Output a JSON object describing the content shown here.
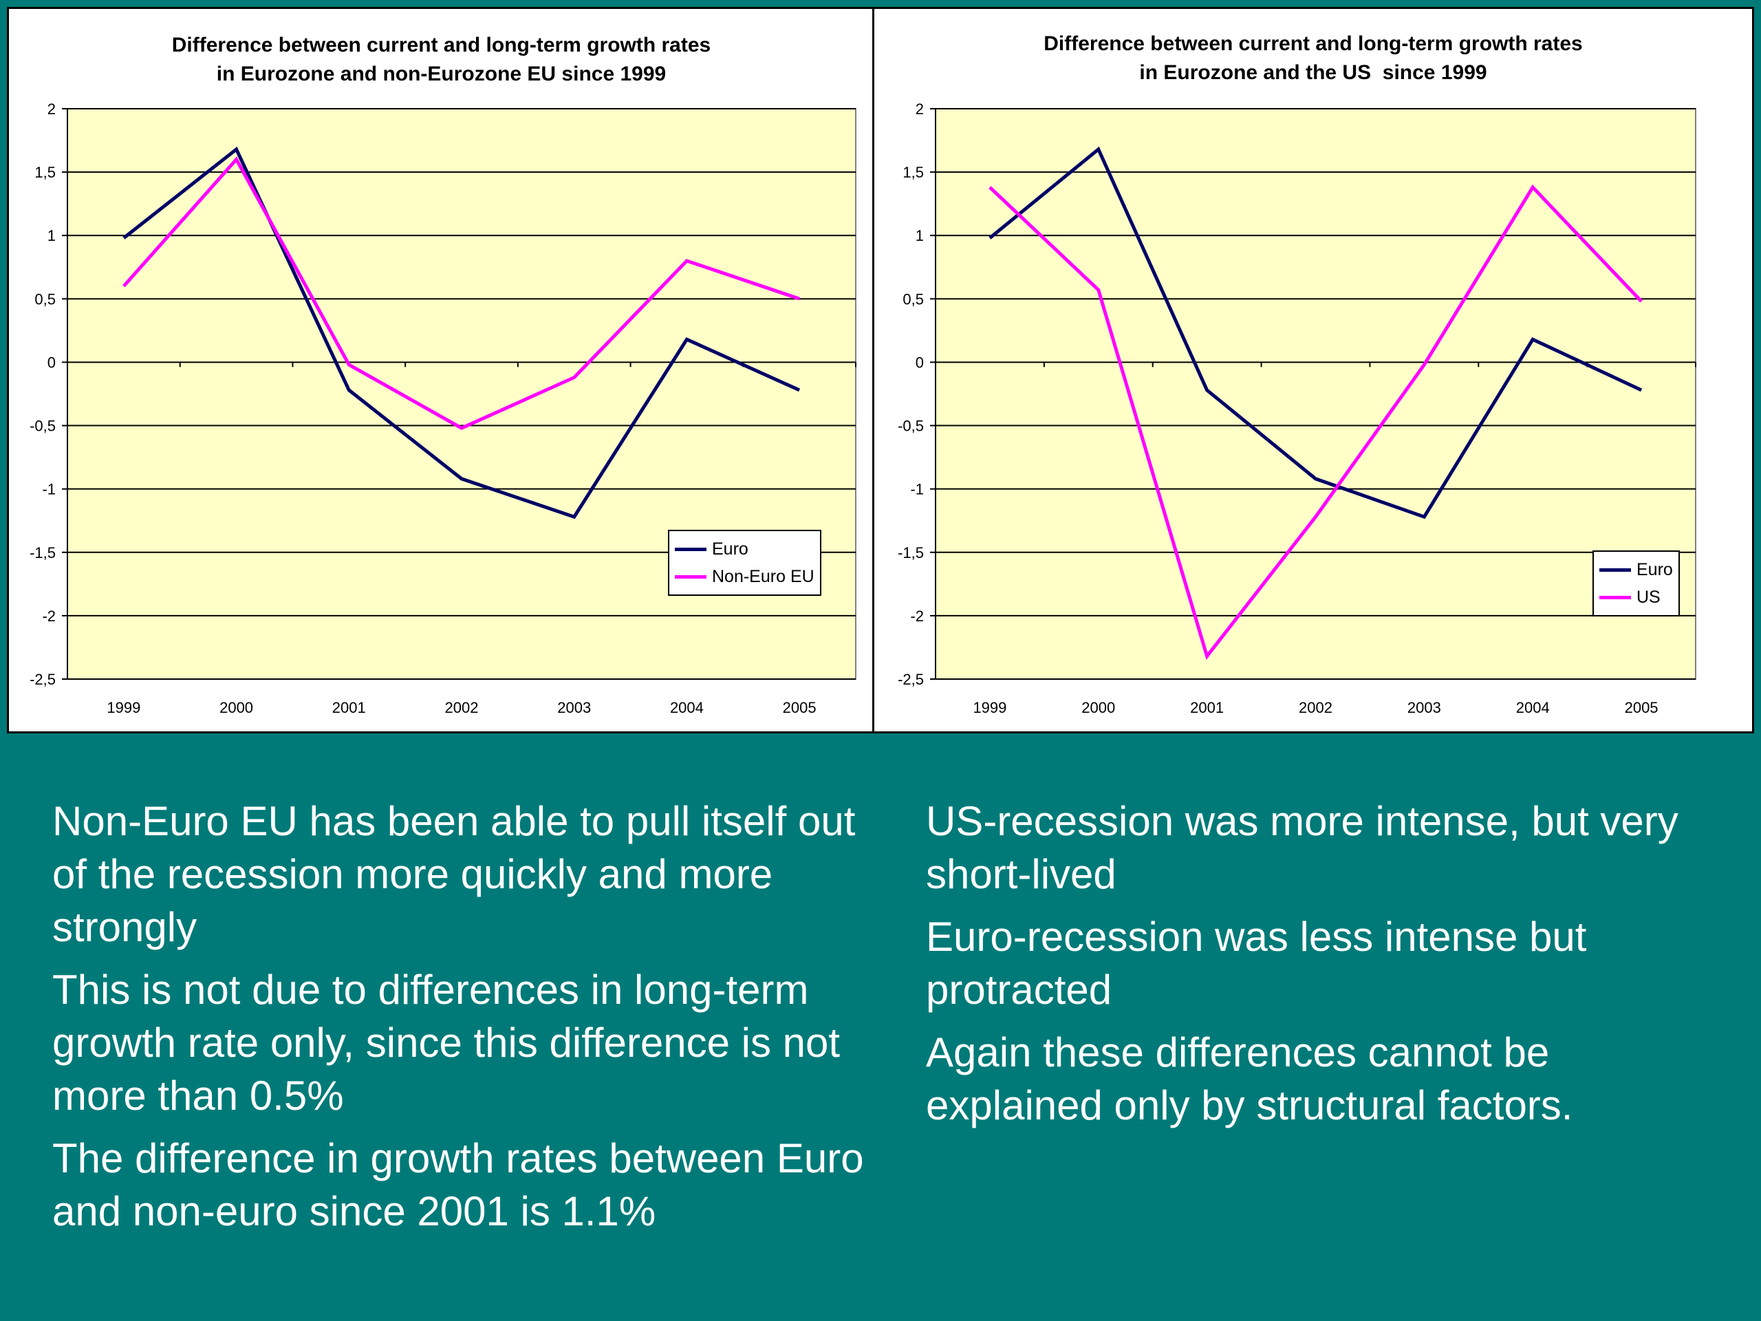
{
  "chart_data": [
    {
      "type": "line",
      "title": "Difference between current and long-term growth rates\nin Eurozone and non-Eurozone EU since 1999",
      "x": [
        "1999",
        "2000",
        "2001",
        "2002",
        "2003",
        "2004",
        "2005"
      ],
      "ylim": [
        -2.5,
        2
      ],
      "yticks": [
        "2",
        "1,5",
        "1",
        "0,5",
        "0",
        "-0,5",
        "-1",
        "-1,5",
        "-2",
        "-2,5"
      ],
      "ytick_values": [
        2,
        1.5,
        1,
        0.5,
        0,
        -0.5,
        -1,
        -1.5,
        -2,
        -2.5
      ],
      "grid": true,
      "plot_background": "#ffffc8",
      "legend_placement": "bottom-right",
      "series": [
        {
          "name": "Euro",
          "color": "#000066",
          "values": [
            0.98,
            1.68,
            -0.22,
            -0.92,
            -1.22,
            0.18,
            -0.22
          ]
        },
        {
          "name": "Non-Euro EU",
          "color": "#ff00ff",
          "values": [
            0.6,
            1.6,
            -0.02,
            -0.52,
            -0.12,
            0.8,
            0.5
          ]
        }
      ]
    },
    {
      "type": "line",
      "title": "Difference between current and long-term growth rates\nin Eurozone and the US  since 1999",
      "x": [
        "1999",
        "2000",
        "2001",
        "2002",
        "2003",
        "2004",
        "2005"
      ],
      "ylim": [
        -2.5,
        2
      ],
      "yticks": [
        "2",
        "1,5",
        "1",
        "0,5",
        "0",
        "-0,5",
        "-1",
        "-1,5",
        "-2",
        "-2,5"
      ],
      "ytick_values": [
        2,
        1.5,
        1,
        0.5,
        0,
        -0.5,
        -1,
        -1.5,
        -2,
        -2.5
      ],
      "grid": true,
      "plot_background": "#ffffc8",
      "legend_placement": "bottom-right",
      "series": [
        {
          "name": "Euro",
          "color": "#000066",
          "values": [
            0.98,
            1.68,
            -0.22,
            -0.92,
            -1.22,
            0.18,
            -0.22
          ]
        },
        {
          "name": "US",
          "color": "#ff00ff",
          "values": [
            1.38,
            0.57,
            -2.32,
            -1.22,
            -0.02,
            1.38,
            0.48
          ]
        }
      ]
    }
  ],
  "text_left": [
    "Non-Euro EU has been able to pull itself out of the recession more quickly and more strongly",
    "This is not due to differences in long-term growth rate only, since this difference is not more than 0.5%",
    "The difference in growth rates between Euro and non-euro since 2001 is 1.1%"
  ],
  "text_right": [
    "US-recession was more intense, but very short-lived",
    "Euro-recession was less intense but protracted",
    "Again these differences cannot be explained only by structural factors."
  ]
}
